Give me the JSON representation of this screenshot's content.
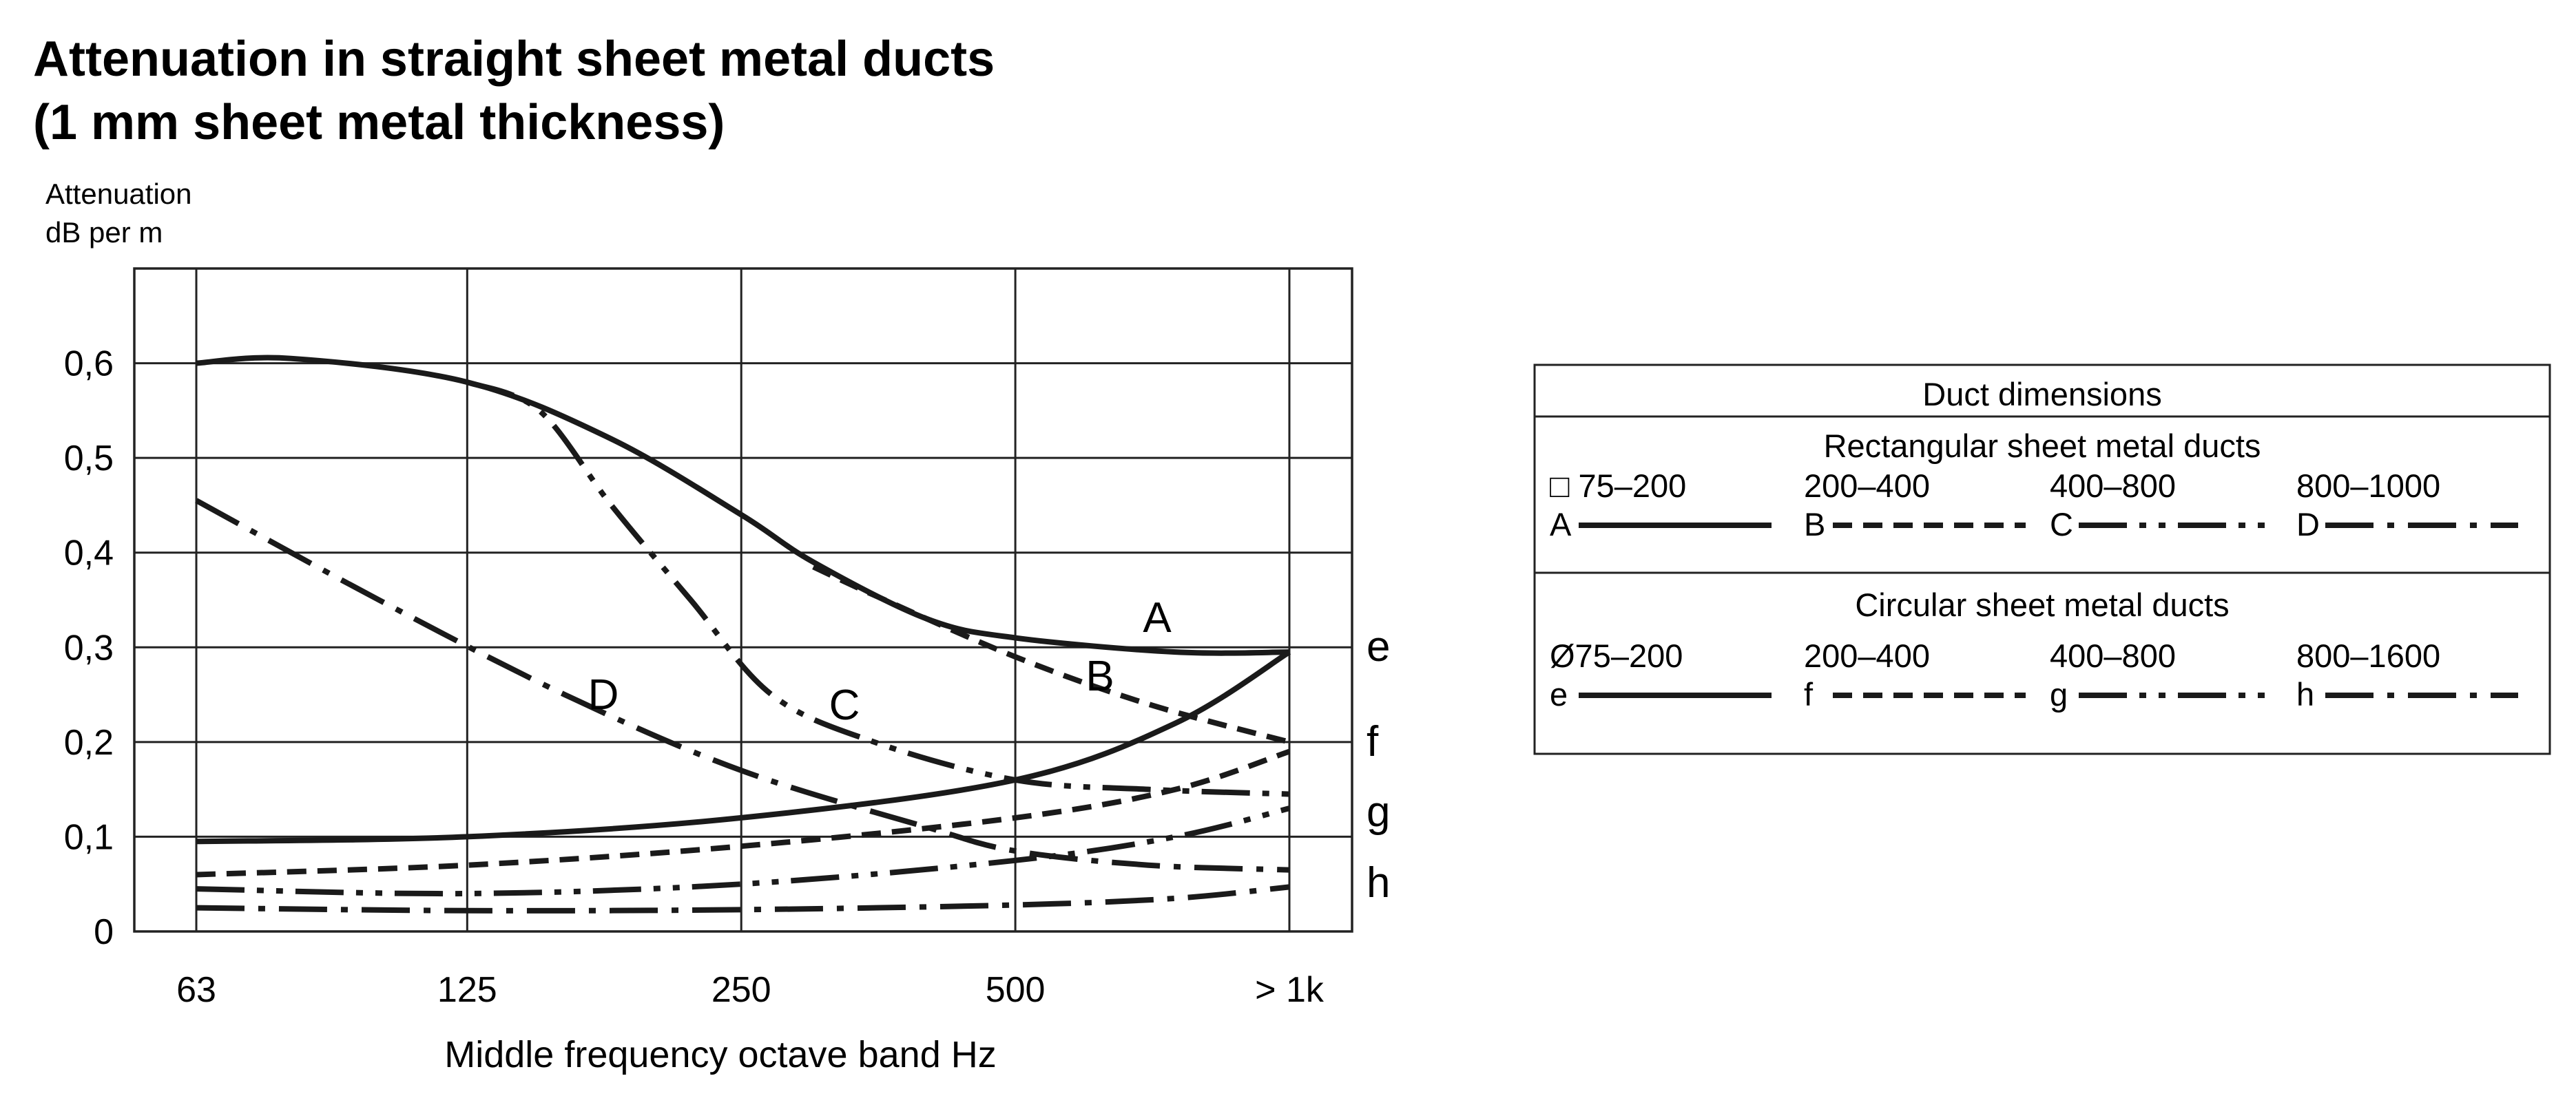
{
  "chart_data": {
    "type": "line",
    "title": [
      "Attenuation in straight sheet metal ducts",
      "(1 mm sheet metal thickness)"
    ],
    "ylabel": [
      "Attenuation",
      "dB per m"
    ],
    "xlabel": "Middle frequency octave band Hz",
    "x_scale": "log2 octave bands",
    "categories": [
      "63",
      "125",
      "250",
      "500",
      "> 1k"
    ],
    "x": [
      63,
      125,
      250,
      500,
      1000
    ],
    "yticks": [
      "0",
      "0,1",
      "0,2",
      "0,3",
      "0,4",
      "0,5",
      "0,6"
    ],
    "ylim": [
      0,
      0.7
    ],
    "grid": true,
    "series": [
      {
        "name": "A",
        "style": "solid",
        "label": "A",
        "points": [
          [
            63,
            0.6
          ],
          [
            80,
            0.605
          ],
          [
            125,
            0.58
          ],
          [
            180,
            0.52
          ],
          [
            250,
            0.44
          ],
          [
            300,
            0.39
          ],
          [
            400,
            0.33
          ],
          [
            500,
            0.31
          ],
          [
            750,
            0.295
          ],
          [
            1000,
            0.295
          ]
        ]
      },
      {
        "name": "B",
        "style": "dashed",
        "label": "B",
        "points": [
          [
            300,
            0.385
          ],
          [
            350,
            0.355
          ],
          [
            500,
            0.29
          ],
          [
            700,
            0.24
          ],
          [
            1000,
            0.2
          ]
        ]
      },
      {
        "name": "C",
        "style": "dash-dot-dot",
        "label": "C",
        "points": [
          [
            125,
            0.58
          ],
          [
            150,
            0.55
          ],
          [
            180,
            0.45
          ],
          [
            220,
            0.35
          ],
          [
            270,
            0.25
          ],
          [
            350,
            0.2
          ],
          [
            500,
            0.16
          ],
          [
            700,
            0.15
          ],
          [
            1000,
            0.145
          ]
        ]
      },
      {
        "name": "D",
        "style": "dash-dot",
        "label": "D",
        "points": [
          [
            63,
            0.455
          ],
          [
            100,
            0.35
          ],
          [
            160,
            0.25
          ],
          [
            250,
            0.17
          ],
          [
            400,
            0.11
          ],
          [
            500,
            0.085
          ],
          [
            700,
            0.07
          ],
          [
            1000,
            0.065
          ]
        ]
      },
      {
        "name": "e",
        "style": "solid",
        "label": "e",
        "points": [
          [
            63,
            0.095
          ],
          [
            125,
            0.1
          ],
          [
            250,
            0.12
          ],
          [
            500,
            0.16
          ],
          [
            750,
            0.22
          ],
          [
            1000,
            0.295
          ]
        ]
      },
      {
        "name": "f",
        "style": "dashed",
        "label": "f",
        "points": [
          [
            63,
            0.06
          ],
          [
            125,
            0.07
          ],
          [
            250,
            0.09
          ],
          [
            500,
            0.12
          ],
          [
            750,
            0.15
          ],
          [
            1000,
            0.19
          ]
        ]
      },
      {
        "name": "g",
        "style": "dash-dot-dot",
        "label": "g",
        "points": [
          [
            63,
            0.045
          ],
          [
            125,
            0.04
          ],
          [
            250,
            0.05
          ],
          [
            500,
            0.075
          ],
          [
            750,
            0.1
          ],
          [
            1000,
            0.13
          ]
        ]
      },
      {
        "name": "h",
        "style": "dash-dot",
        "label": "h",
        "points": [
          [
            63,
            0.025
          ],
          [
            125,
            0.022
          ],
          [
            250,
            0.023
          ],
          [
            500,
            0.028
          ],
          [
            750,
            0.035
          ],
          [
            1000,
            0.047
          ]
        ]
      }
    ]
  },
  "legend": {
    "header": "Duct dimensions",
    "sections": [
      {
        "title": "Rectangular sheet metal ducts",
        "items": [
          {
            "range": "□ 75–200",
            "letter": "A",
            "style": "solid"
          },
          {
            "range": "200–400",
            "letter": "B",
            "style": "dashed"
          },
          {
            "range": "400–800",
            "letter": "C",
            "style": "dash-dot-dot"
          },
          {
            "range": "800–1000",
            "letter": "D",
            "style": "dash-dot"
          }
        ]
      },
      {
        "title": "Circular sheet metal ducts",
        "items": [
          {
            "range": "Ø75–200",
            "letter": "e",
            "style": "solid"
          },
          {
            "range": "200–400",
            "letter": "f",
            "style": "dashed"
          },
          {
            "range": "400–800",
            "letter": "g",
            "style": "dash-dot-dot"
          },
          {
            "range": "800–1600",
            "letter": "h",
            "style": "dash-dot"
          }
        ]
      }
    ]
  }
}
